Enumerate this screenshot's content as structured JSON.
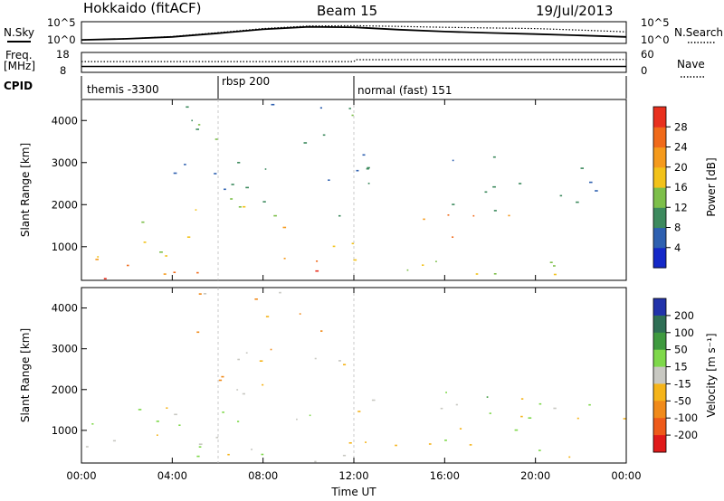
{
  "header": {
    "title": "Hokkaido (fitACF)",
    "beam": "Beam 15",
    "date": "19/Jul/2013"
  },
  "nsky_panel": {
    "label": "N.Sky",
    "left_ticks": [
      "10^5",
      "10^0"
    ],
    "right_ticks": [
      "10^5",
      "10^0"
    ],
    "right_label": "N.Search"
  },
  "freq_panel": {
    "label_line1": "Freq.",
    "label_line2": "[MHz]",
    "left_ticks": [
      "18",
      "8"
    ],
    "right_ticks": [
      "60",
      "0"
    ],
    "right_label": "Nave"
  },
  "cpid_panel": {
    "label": "CPID",
    "segments": [
      {
        "label": "themis -3300",
        "start_hour": 0
      },
      {
        "label": "rbsp 200",
        "start_hour": 6
      },
      {
        "label": "normal (fast) 151",
        "start_hour": 12
      }
    ]
  },
  "power_colorbar": {
    "label": "Power [dB]",
    "ticks": [
      "4",
      "8",
      "12",
      "16",
      "20",
      "24",
      "28"
    ],
    "colors": [
      "#1428c8",
      "#2e60b0",
      "#3d8a5e",
      "#7dbf4a",
      "#f2c21a",
      "#f59a1c",
      "#f06a1a",
      "#e8301e"
    ]
  },
  "velocity_colorbar": {
    "label": "Velocity [m s⁻¹]",
    "ticks": [
      "200",
      "100",
      "50",
      "15",
      "-15",
      "-50",
      "-100",
      "-200"
    ],
    "colors": [
      "#2233aa",
      "#2f6f55",
      "#3f9a3f",
      "#7ed84a",
      "#c8c8c2",
      "#f5b41a",
      "#f08a1a",
      "#ee5a1a",
      "#e01a1a"
    ]
  },
  "axes": {
    "ylabel": "Slant Range [km]",
    "yticks": [
      "1000",
      "2000",
      "3000",
      "4000"
    ],
    "xticks": [
      "00:00",
      "04:00",
      "08:00",
      "12:00",
      "16:00",
      "20:00",
      "00:00"
    ],
    "xlabel": "Time UT"
  },
  "chart_data": [
    {
      "type": "line",
      "title": "N.Sky",
      "xlabel": "Time UT",
      "x_unit": "hour",
      "ylog": true,
      "series": [
        {
          "name": "N.Sky",
          "x": [
            0,
            2,
            4,
            6,
            8,
            10,
            12,
            14,
            16,
            18,
            20,
            22,
            24
          ],
          "y": [
            3,
            6,
            20,
            200,
            2500,
            12000,
            9000,
            2000,
            600,
            250,
            120,
            50,
            20
          ]
        },
        {
          "name": "N.Search",
          "x": [
            0,
            2,
            4,
            6,
            8,
            10,
            12,
            14,
            16,
            18,
            20,
            22,
            24
          ],
          "y": [
            3,
            6,
            25,
            300,
            4000,
            20000,
            25000,
            16000,
            9000,
            6000,
            4000,
            1500,
            500
          ]
        }
      ]
    },
    {
      "type": "line",
      "title": "Freq. / Nave",
      "xlabel": "Time UT",
      "x_unit": "hour",
      "series": [
        {
          "name": "Freq. [MHz]",
          "x": [
            0,
            6,
            12,
            18,
            24
          ],
          "y": [
            10.5,
            10.5,
            10.5,
            10.5,
            10.5
          ]
        },
        {
          "name": "Nave",
          "x": [
            0,
            12,
            12.1,
            24
          ],
          "y": [
            33,
            33,
            40,
            41
          ]
        }
      ]
    },
    {
      "type": "heatmap",
      "title": "Power [dB]",
      "xlabel": "Time UT",
      "ylabel": "Slant Range [km]",
      "xlim": [
        0,
        24
      ],
      "ylim": [
        200,
        4500
      ],
      "clim": [
        0,
        32
      ],
      "regions": [
        {
          "t": [
            0,
            12
          ],
          "range": [
            200,
            700
          ],
          "value": 26
        },
        {
          "t": [
            0,
            12
          ],
          "range": [
            700,
            1500
          ],
          "value": 18
        },
        {
          "t": [
            2,
            12
          ],
          "range": [
            1500,
            2200
          ],
          "value": 14
        },
        {
          "t": [
            4,
            12
          ],
          "range": [
            2200,
            4400
          ],
          "value": 10
        },
        {
          "t": [
            12,
            24
          ],
          "range": [
            300,
            900
          ],
          "value": 16
        },
        {
          "t": [
            14,
            20
          ],
          "range": [
            1100,
            1800
          ],
          "value": 24
        },
        {
          "t": [
            12,
            23
          ],
          "range": [
            1800,
            3200
          ],
          "value": 8
        }
      ]
    },
    {
      "type": "heatmap",
      "title": "Velocity [m s⁻¹]",
      "xlabel": "Time UT",
      "ylabel": "Slant Range [km]",
      "xlim": [
        0,
        24
      ],
      "ylim": [
        200,
        4500
      ],
      "clim": [
        -200,
        200
      ],
      "regions": [
        {
          "t": [
            0,
            12
          ],
          "range": [
            200,
            2000
          ],
          "value": 0
        },
        {
          "t": [
            5,
            12
          ],
          "range": [
            2000,
            4400
          ],
          "value": -40
        },
        {
          "t": [
            12,
            24
          ],
          "range": [
            300,
            1800
          ],
          "value": 0
        },
        {
          "t": [
            16,
            20
          ],
          "range": [
            1000,
            2000
          ],
          "value": 30
        }
      ]
    }
  ]
}
